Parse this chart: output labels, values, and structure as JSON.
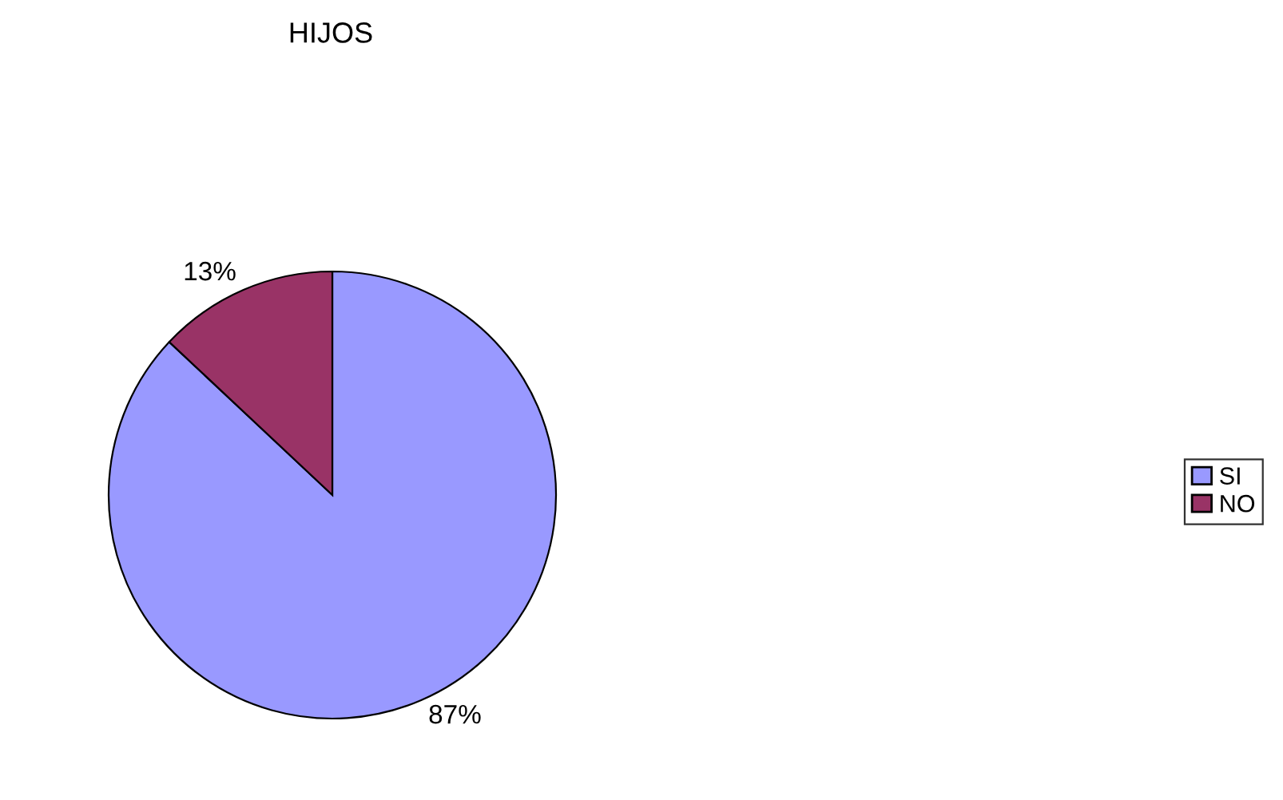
{
  "chart_data": {
    "type": "pie",
    "title": "HIJOS",
    "categories": [
      "SI",
      "NO"
    ],
    "values": [
      87,
      13
    ],
    "colors": [
      "#9999ff",
      "#993366"
    ],
    "value_labels": [
      "87%",
      "13%"
    ],
    "legend": "right"
  }
}
